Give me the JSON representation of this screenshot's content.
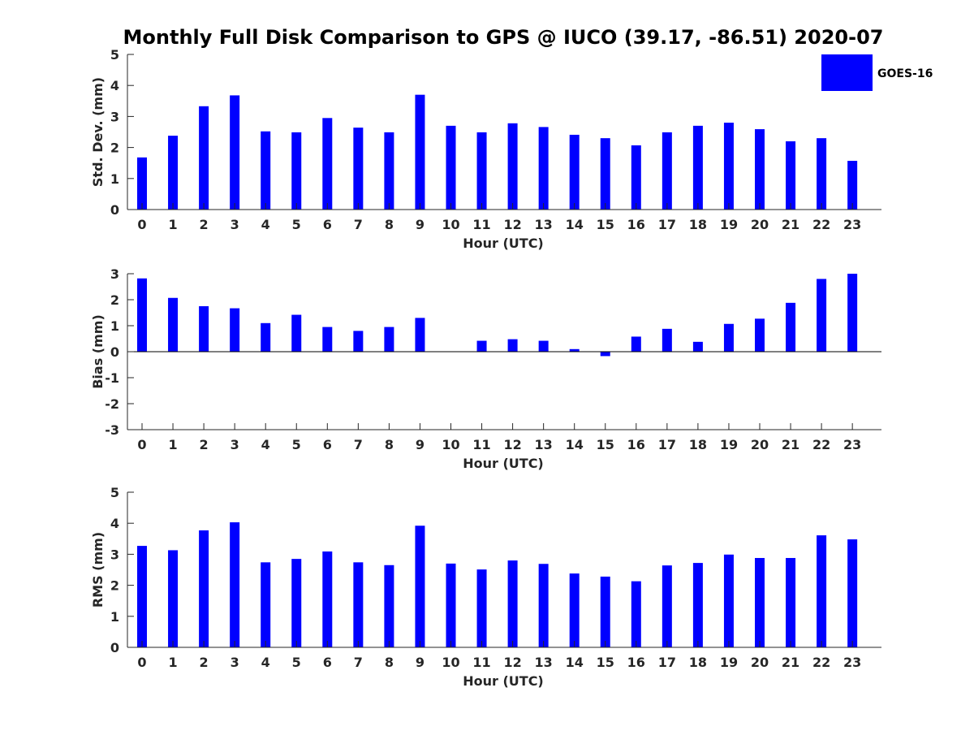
{
  "title": "Monthly Full Disk Comparison to GPS @ IUCO (39.17, -86.51) 2020-07",
  "legend": {
    "label": "GOES-16",
    "color": "#0000ff",
    "placement": "top-right"
  },
  "chart_data": [
    {
      "type": "bar",
      "categories": [
        "0",
        "1",
        "2",
        "3",
        "4",
        "5",
        "6",
        "7",
        "8",
        "9",
        "10",
        "11",
        "12",
        "13",
        "14",
        "15",
        "16",
        "17",
        "18",
        "19",
        "20",
        "21",
        "22",
        "23"
      ],
      "series": [
        {
          "name": "GOES-16",
          "values": [
            1.68,
            2.38,
            3.33,
            3.68,
            2.52,
            2.49,
            2.95,
            2.64,
            2.49,
            3.7,
            2.7,
            2.49,
            2.78,
            2.66,
            2.41,
            2.3,
            2.07,
            2.49,
            2.7,
            2.8,
            2.59,
            2.2,
            2.3,
            1.57
          ]
        }
      ],
      "xlabel": "Hour (UTC)",
      "ylabel": "Std. Dev. (mm)",
      "ylim": [
        0,
        5
      ],
      "yticks": [
        "0",
        "1",
        "2",
        "3",
        "4",
        "5"
      ],
      "grid": false
    },
    {
      "type": "bar",
      "categories": [
        "0",
        "1",
        "2",
        "3",
        "4",
        "5",
        "6",
        "7",
        "8",
        "9",
        "10",
        "11",
        "12",
        "13",
        "14",
        "15",
        "16",
        "17",
        "18",
        "19",
        "20",
        "21",
        "22",
        "23"
      ],
      "series": [
        {
          "name": "GOES-16",
          "values": [
            2.82,
            2.07,
            1.75,
            1.67,
            1.1,
            1.42,
            0.95,
            0.8,
            0.95,
            1.3,
            0.0,
            0.42,
            0.48,
            0.42,
            0.1,
            -0.17,
            0.58,
            0.88,
            0.38,
            1.07,
            1.27,
            1.88,
            2.8,
            3.0
          ]
        }
      ],
      "xlabel": "Hour (UTC)",
      "ylabel": "Bias (mm)",
      "ylim": [
        -3,
        3
      ],
      "yticks": [
        "-3",
        "-2",
        "-1",
        "0",
        "1",
        "2",
        "3"
      ],
      "grid": false
    },
    {
      "type": "bar",
      "categories": [
        "0",
        "1",
        "2",
        "3",
        "4",
        "5",
        "6",
        "7",
        "8",
        "9",
        "10",
        "11",
        "12",
        "13",
        "14",
        "15",
        "16",
        "17",
        "18",
        "19",
        "20",
        "21",
        "22",
        "23"
      ],
      "series": [
        {
          "name": "GOES-16",
          "values": [
            3.27,
            3.13,
            3.77,
            4.03,
            2.74,
            2.85,
            3.09,
            2.74,
            2.65,
            3.92,
            2.7,
            2.51,
            2.8,
            2.69,
            2.38,
            2.28,
            2.13,
            2.64,
            2.72,
            2.99,
            2.88,
            2.88,
            3.61,
            3.48
          ]
        }
      ],
      "xlabel": "Hour (UTC)",
      "ylabel": "RMS (mm)",
      "ylim": [
        0,
        5
      ],
      "yticks": [
        "0",
        "1",
        "2",
        "3",
        "4",
        "5"
      ],
      "grid": false
    }
  ]
}
